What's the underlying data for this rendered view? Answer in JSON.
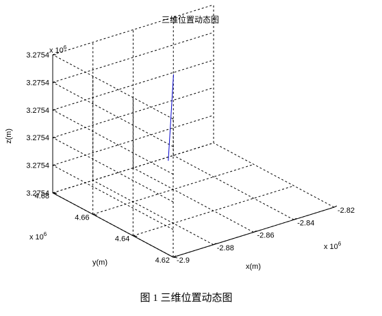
{
  "chart_data": {
    "type": "line",
    "title": "三维位置动态图",
    "xlabel": "x(m)",
    "ylabel": "y(m)",
    "zlabel": "z(m)",
    "x_exponent_label": "x 10",
    "x_exponent_power": "6",
    "y_exponent_label": "x 10",
    "y_exponent_power": "6",
    "z_exponent_label": "x 10",
    "z_exponent_power": "6",
    "xlim": [
      -2.9,
      -2.82
    ],
    "ylim": [
      4.62,
      4.68
    ],
    "zlim": [
      0,
      5
    ],
    "x_ticks": [
      -2.9,
      -2.88,
      -2.86,
      -2.84,
      -2.82
    ],
    "x_tick_labels": [
      "-2.9",
      "-2.88",
      "-2.86",
      "-2.84",
      "-2.82"
    ],
    "y_ticks": [
      4.62,
      4.64,
      4.66,
      4.68
    ],
    "y_tick_labels": [
      "4.62",
      "4.64",
      "4.66",
      "4.68"
    ],
    "z_ticks": [
      0,
      1,
      2,
      3,
      4,
      5
    ],
    "z_tick_labels": [
      "3.2754",
      "3.2754",
      "3.2754",
      "3.2754",
      "3.2754",
      "3.2754"
    ],
    "grid": true,
    "series": [
      {
        "color": "#0000cc",
        "x": [
          -2.8643,
          -2.8565
        ],
        "y": [
          4.6582,
          4.6634
        ],
        "z": [
          1.2,
          3.95
        ]
      }
    ]
  },
  "caption": "图 1  三维位置动态图"
}
